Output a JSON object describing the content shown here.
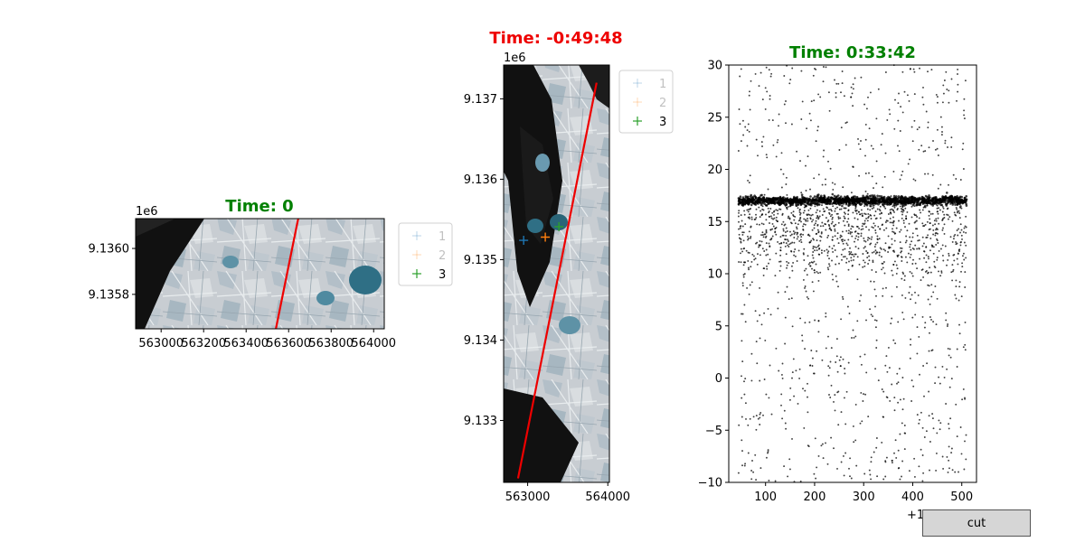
{
  "colors": {
    "title_green": "#008000",
    "title_red": "#ee0000",
    "track_line": "#ee0000",
    "series_1": "#1f77b4",
    "series_2": "#ff7f0e",
    "series_3": "#2ca02c",
    "points": "#000000"
  },
  "cut_button": {
    "label": "cut"
  },
  "chart_data": [
    {
      "type": "scatter",
      "title": "Time: 0",
      "title_color": "green",
      "background": "satellite sea-ice image",
      "x_ticks": [
        "563000",
        "563200",
        "563400",
        "563600",
        "563800",
        "564000"
      ],
      "x_tick_values": [
        563000,
        563200,
        563400,
        563600,
        563800,
        564000
      ],
      "xlim": [
        562880,
        564050
      ],
      "y_ticks": [
        "9.1358",
        "9.1360"
      ],
      "y_tick_values": [
        9.1358,
        9.136
      ],
      "ylim": [
        9.13565,
        9.13613
      ],
      "y_offset_text": "1e6",
      "track": {
        "x": [
          563540,
          563645
        ],
        "y": [
          9.13565,
          9.13613
        ]
      },
      "legend": [
        "1",
        "2",
        "3"
      ],
      "legend_alpha": [
        0.25,
        0.25,
        1.0
      ],
      "legend_placement": "outside-right"
    },
    {
      "type": "scatter",
      "title": "Time: -0:49:48",
      "title_color": "red",
      "background": "satellite sea-ice image",
      "x_ticks": [
        "563000",
        "564000"
      ],
      "x_tick_values": [
        563000,
        564000
      ],
      "xlim": [
        562700,
        564020
      ],
      "y_ticks": [
        "9.133",
        "9.134",
        "9.135",
        "9.136",
        "9.137"
      ],
      "y_tick_values": [
        9.133,
        9.134,
        9.135,
        9.136,
        9.137
      ],
      "ylim": [
        9.13223,
        9.13742
      ],
      "y_offset_text": "1e6",
      "track": {
        "x": [
          562880,
          563860
        ],
        "y": [
          9.13228,
          9.1372
        ]
      },
      "markers": [
        {
          "series": "1",
          "x": 562950,
          "y": 9.13524
        },
        {
          "series": "2",
          "x": 563220,
          "y": 9.13528
        },
        {
          "series": "3",
          "x": 563390,
          "y": 9.13541
        }
      ],
      "legend": [
        "1",
        "2",
        "3"
      ],
      "legend_alpha": [
        0.25,
        0.25,
        1.0
      ],
      "legend_placement": "outside-right"
    },
    {
      "type": "scatter",
      "title": "Time: 0:33:42",
      "title_color": "green",
      "x_ticks": [
        "100",
        "200",
        "300",
        "400",
        "500"
      ],
      "x_tick_values": [
        100,
        200,
        300,
        400,
        500
      ],
      "xlim": [
        25,
        530
      ],
      "y_ticks": [
        "−10",
        "−5",
        "0",
        "5",
        "10",
        "15",
        "20",
        "25",
        "30"
      ],
      "y_tick_values": [
        -10,
        -5,
        0,
        5,
        10,
        15,
        20,
        25,
        30
      ],
      "ylim": [
        -10,
        30
      ],
      "x_offset_text": "+1.6071e7",
      "surface_band": {
        "x_range": [
          45,
          510
        ],
        "y_center": 17.0,
        "y_spread": 0.35
      },
      "noise": {
        "x_range": [
          45,
          510
        ],
        "y_range": [
          -10,
          30
        ],
        "dense_range": [
          10,
          17
        ]
      }
    }
  ]
}
